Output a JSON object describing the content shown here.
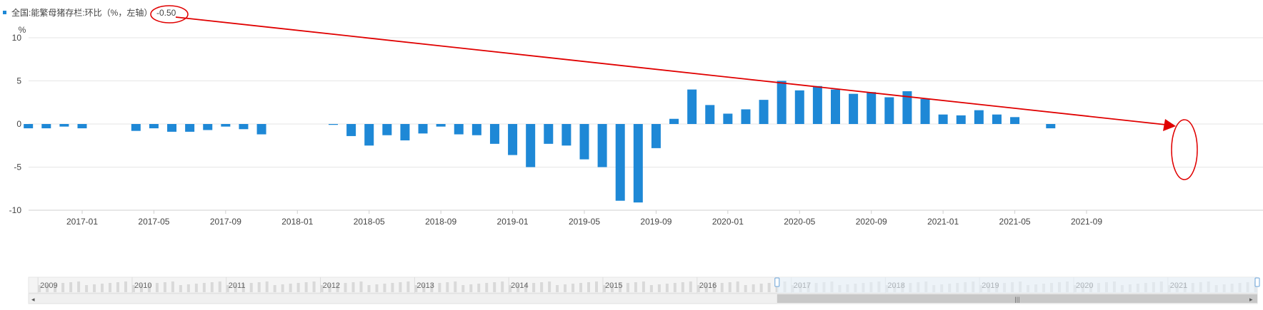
{
  "colors": {
    "bar": "#1e88d6",
    "grid": "#e6e6e6",
    "axis": "#cfcfcf",
    "text": "#444444",
    "annotation": "#e00000",
    "nav_bg": "#f4f4f4",
    "nav_bar": "#d9d9d9",
    "nav_window": "#e8f2fb",
    "scroll_thumb": "#c8c8c8"
  },
  "chart_data": {
    "type": "bar",
    "legend": "全国:能繁母猪存栏:环比（%，左轴）",
    "legend_value": "-0.50",
    "legend_icon": "square-marker",
    "ylabel": "%",
    "ylim": [
      -10,
      10
    ],
    "yticks": [
      10,
      5,
      0,
      -5,
      -10
    ],
    "x_start": "2016-10",
    "x_end": "2021-11",
    "xticks": [
      "2017-01",
      "2017-05",
      "2017-09",
      "2018-01",
      "2018-05",
      "2018-09",
      "2019-01",
      "2019-05",
      "2019-09",
      "2020-01",
      "2020-05",
      "2020-09",
      "2021-01",
      "2021-05",
      "2021-09"
    ],
    "grid": true,
    "series": [
      {
        "points": [
          {
            "x": "2016-10",
            "y": -0.5
          },
          {
            "x": "2016-11",
            "y": -0.5
          },
          {
            "x": "2016-12",
            "y": -0.3
          },
          {
            "x": "2017-01",
            "y": -0.5
          },
          {
            "x": "2017-02",
            "y": null
          },
          {
            "x": "2017-03",
            "y": null
          },
          {
            "x": "2017-04",
            "y": -0.8
          },
          {
            "x": "2017-05",
            "y": -0.5
          },
          {
            "x": "2017-06",
            "y": -0.9
          },
          {
            "x": "2017-07",
            "y": -0.9
          },
          {
            "x": "2017-08",
            "y": -0.7
          },
          {
            "x": "2017-09",
            "y": -0.3
          },
          {
            "x": "2017-10",
            "y": -0.6
          },
          {
            "x": "2017-11",
            "y": -1.2
          },
          {
            "x": "2017-12",
            "y": null
          },
          {
            "x": "2018-01",
            "y": null
          },
          {
            "x": "2018-02",
            "y": null
          },
          {
            "x": "2018-03",
            "y": -0.1
          },
          {
            "x": "2018-04",
            "y": -1.4
          },
          {
            "x": "2018-05",
            "y": -2.5
          },
          {
            "x": "2018-06",
            "y": -1.3
          },
          {
            "x": "2018-07",
            "y": -1.9
          },
          {
            "x": "2018-08",
            "y": -1.1
          },
          {
            "x": "2018-09",
            "y": -0.3
          },
          {
            "x": "2018-10",
            "y": -1.2
          },
          {
            "x": "2018-11",
            "y": -1.3
          },
          {
            "x": "2018-12",
            "y": -2.3
          },
          {
            "x": "2019-01",
            "y": -3.6
          },
          {
            "x": "2019-02",
            "y": -5.0
          },
          {
            "x": "2019-03",
            "y": -2.3
          },
          {
            "x": "2019-04",
            "y": -2.5
          },
          {
            "x": "2019-05",
            "y": -4.1
          },
          {
            "x": "2019-06",
            "y": -5.0
          },
          {
            "x": "2019-07",
            "y": -8.9
          },
          {
            "x": "2019-08",
            "y": -9.1
          },
          {
            "x": "2019-09",
            "y": -2.8
          },
          {
            "x": "2019-10",
            "y": 0.6
          },
          {
            "x": "2019-11",
            "y": 4.0
          },
          {
            "x": "2019-12",
            "y": 2.2
          },
          {
            "x": "2020-01",
            "y": 1.2
          },
          {
            "x": "2020-02",
            "y": 1.7
          },
          {
            "x": "2020-03",
            "y": 2.8
          },
          {
            "x": "2020-04",
            "y": 5.0
          },
          {
            "x": "2020-05",
            "y": 3.9
          },
          {
            "x": "2020-06",
            "y": 4.4
          },
          {
            "x": "2020-07",
            "y": 4.0
          },
          {
            "x": "2020-08",
            "y": 3.5
          },
          {
            "x": "2020-09",
            "y": 3.7
          },
          {
            "x": "2020-10",
            "y": 3.1
          },
          {
            "x": "2020-11",
            "y": 3.8
          },
          {
            "x": "2020-12",
            "y": 2.9
          },
          {
            "x": "2021-01",
            "y": 1.1
          },
          {
            "x": "2021-02",
            "y": 1.0
          },
          {
            "x": "2021-03",
            "y": 1.6
          },
          {
            "x": "2021-04",
            "y": 1.1
          },
          {
            "x": "2021-05",
            "y": 0.8
          },
          {
            "x": "2021-06",
            "y": null
          },
          {
            "x": "2021-07",
            "y": -0.5
          }
        ]
      }
    ],
    "navigator": {
      "years": [
        "2009",
        "2010",
        "2011",
        "2012",
        "2013",
        "2014",
        "2015",
        "2016",
        "2017",
        "2018",
        "2019",
        "2020",
        "2021"
      ],
      "window_start_year": "2016.85",
      "window_end_year": "2021.95"
    }
  }
}
